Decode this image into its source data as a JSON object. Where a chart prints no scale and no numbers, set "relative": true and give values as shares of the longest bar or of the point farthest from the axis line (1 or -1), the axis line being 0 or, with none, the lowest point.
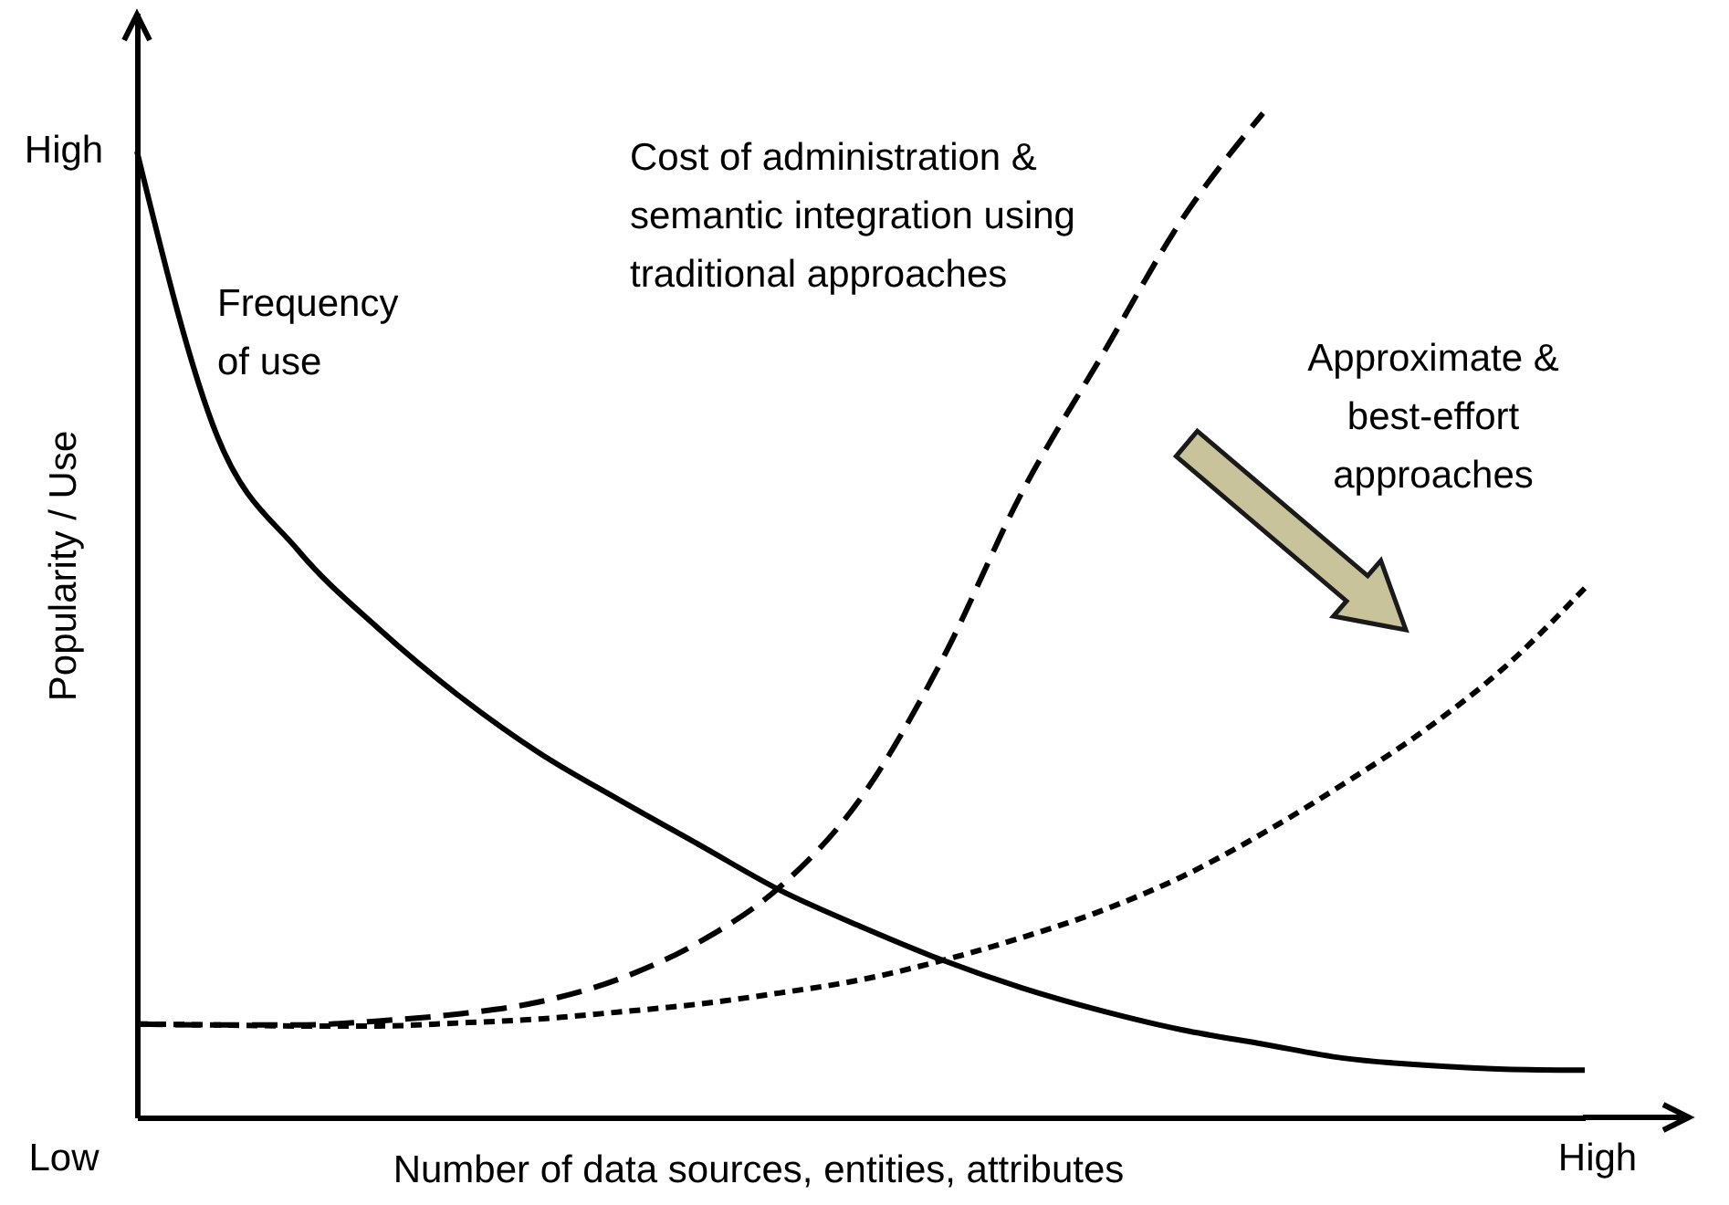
{
  "chart_data": {
    "type": "line",
    "relative": true,
    "xlabel": "Number of data sources, entities, attributes",
    "ylabel": "Popularity / Use",
    "categories": [
      null,
      null,
      null,
      null,
      null,
      null,
      null,
      null,
      null,
      null,
      null,
      null,
      null,
      null,
      null,
      null,
      null,
      null,
      null
    ],
    "annotations": [
      "High",
      "Low",
      "High"
    ],
    "grid": false,
    "marker": "none",
    "series": [
      {
        "name": "Frequency of use",
        "color": "#000000",
        "line_style": "solid",
        "values": [
          0.962,
          0.678,
          0.565,
          0.487,
          0.42,
          0.363,
          0.316,
          0.271,
          0.226,
          0.19,
          0.157,
          0.129,
          0.106,
          0.087,
          0.073,
          0.059,
          0.052,
          0.048,
          0.047
        ]
      },
      {
        "name": "Cost of administration & semantic integration using traditional approaches",
        "color": "#000000",
        "line_style": "dashed",
        "values": [
          0.093,
          0.092,
          0.092,
          0.096,
          0.103,
          0.115,
          0.138,
          0.175,
          0.23,
          0.318,
          0.454,
          0.622,
          0.759,
          0.895,
          1,
          null,
          null,
          null,
          null
        ]
      },
      {
        "name": "Approximate & best-effort approaches",
        "color": "#000000",
        "line_style": "dotted",
        "values": [
          0.093,
          0.092,
          0.091,
          0.091,
          0.094,
          0.098,
          0.105,
          0.113,
          0.124,
          0.137,
          0.156,
          0.179,
          0.206,
          0.24,
          0.283,
          0.332,
          0.385,
          0.448,
          0.527
        ]
      }
    ]
  }
}
